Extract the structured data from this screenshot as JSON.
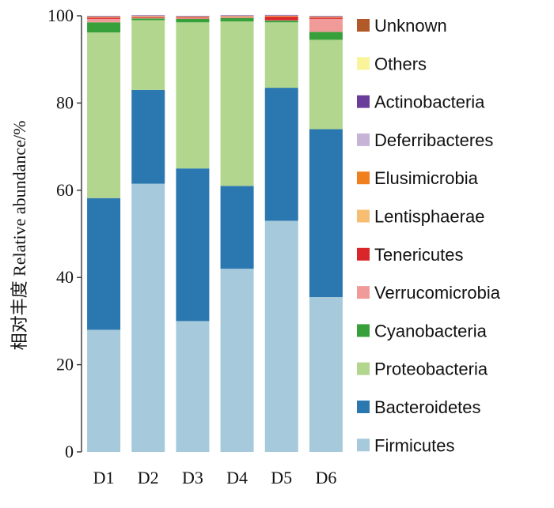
{
  "chart_data": {
    "type": "bar",
    "stacked": true,
    "ylabel": "相对丰度 Relative abundance/%",
    "xlabel": "",
    "ylim": [
      0,
      100
    ],
    "yticks": [
      "0",
      "20",
      "40",
      "60",
      "80",
      "100"
    ],
    "categories": [
      "D1",
      "D2",
      "D3",
      "D4",
      "D5",
      "D6"
    ],
    "legend_position": "right",
    "series": [
      {
        "name": "Firmicutes",
        "color": "#a6cadb",
        "values": [
          28.0,
          61.5,
          30.0,
          42.0,
          53.0,
          35.5
        ]
      },
      {
        "name": "Bacteroidetes",
        "color": "#2b78b0",
        "values": [
          30.2,
          21.5,
          35.0,
          19.0,
          30.5,
          38.5
        ]
      },
      {
        "name": "Proteobacteria",
        "color": "#b2d68e",
        "values": [
          38.0,
          16.0,
          33.5,
          37.7,
          15.0,
          20.5
        ]
      },
      {
        "name": "Cyanobacteria",
        "color": "#37a03a",
        "values": [
          2.3,
          0.4,
          0.8,
          0.8,
          0.4,
          1.8
        ]
      },
      {
        "name": "Verrucomicrobia",
        "color": "#f09a9a",
        "values": [
          0.8,
          0.1,
          0.1,
          0.1,
          0.1,
          3.0
        ]
      },
      {
        "name": "Tenericutes",
        "color": "#d9262a",
        "values": [
          0.3,
          0.2,
          0.2,
          0.1,
          0.8,
          0.3
        ]
      },
      {
        "name": "Lentisphaerae",
        "color": "#f7bd73",
        "values": [
          0.1,
          0.1,
          0.1,
          0.1,
          0.1,
          0.1
        ]
      },
      {
        "name": "Elusimicrobia",
        "color": "#f07f1d",
        "values": [
          0.1,
          0.1,
          0.1,
          0.1,
          0.1,
          0.1
        ]
      },
      {
        "name": "Deferribacteres",
        "color": "#c6b4d7",
        "values": [
          0.1,
          0.1,
          0.1,
          0.1,
          0.1,
          0.1
        ]
      },
      {
        "name": "Actinobacteria",
        "color": "#6a3d9a",
        "values": [
          0.1,
          0.1,
          0.1,
          0.1,
          0.1,
          0.1
        ]
      },
      {
        "name": "Others",
        "color": "#f9f39a",
        "values": [
          0.0,
          0.0,
          0.0,
          0.0,
          0.0,
          0.0
        ]
      },
      {
        "name": "Unknown",
        "color": "#b15928",
        "values": [
          0.0,
          0.0,
          0.0,
          0.0,
          0.0,
          0.0
        ]
      }
    ]
  }
}
